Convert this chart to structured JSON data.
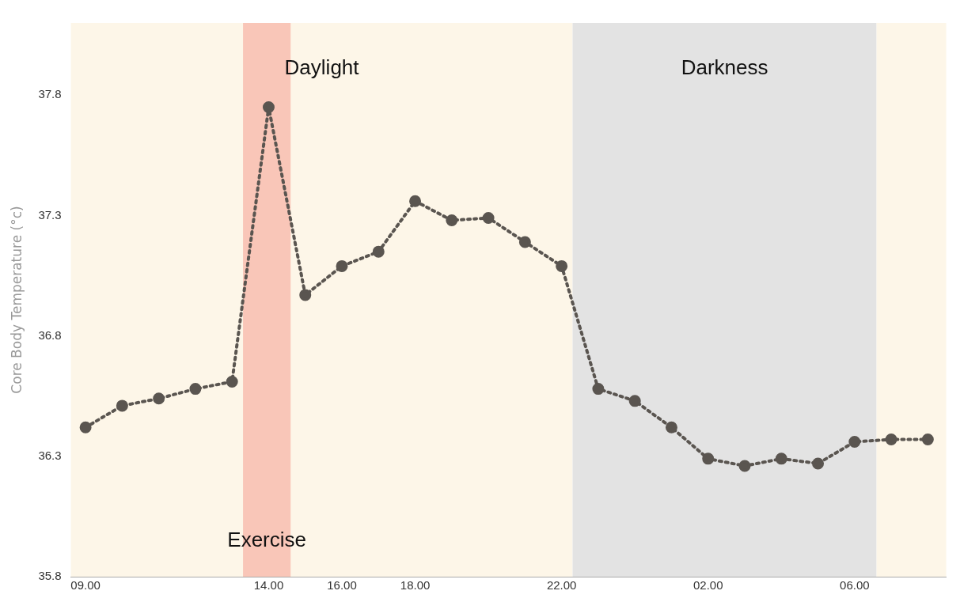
{
  "chart_data": {
    "type": "line",
    "ylabel": "Core Body Temperature (°c)",
    "x": [
      "2000-01-01T09:00",
      "2000-01-01T10:00",
      "2000-01-01T11:00",
      "2000-01-01T12:00",
      "2000-01-01T13:00",
      "2000-01-01T14:00",
      "2000-01-01T15:00",
      "2000-01-01T16:00",
      "2000-01-01T17:00",
      "2000-01-01T18:00",
      "2000-01-01T19:00",
      "2000-01-01T20:00",
      "2000-01-01T21:00",
      "2000-01-01T22:00",
      "2000-01-01T23:00",
      "2000-01-02T00:00",
      "2000-01-02T01:00",
      "2000-01-02T02:00",
      "2000-01-02T03:00",
      "2000-01-02T04:00",
      "2000-01-02T05:00",
      "2000-01-02T06:00",
      "2000-01-02T07:00",
      "2000-01-02T08:00"
    ],
    "series": [
      {
        "color": "#5a5550",
        "values": [
          36.42,
          36.51,
          36.54,
          36.58,
          36.61,
          37.75,
          36.97,
          37.09,
          37.15,
          37.36,
          37.28,
          37.29,
          37.19,
          37.09,
          36.58,
          36.53,
          36.42,
          36.29,
          36.26,
          36.29,
          36.27,
          36.36,
          36.37,
          36.37
        ]
      }
    ],
    "xlim": [
      "2000-01-01T08:36",
      "2000-01-02T08:30"
    ],
    "xticks": [
      {
        "value": "2000-01-01T09:00",
        "label": "09.00"
      },
      {
        "value": "2000-01-01T14:00",
        "label": "14.00"
      },
      {
        "value": "2000-01-01T16:00",
        "label": "16.00"
      },
      {
        "value": "2000-01-01T18:00",
        "label": "18.00"
      },
      {
        "value": "2000-01-01T22:00",
        "label": "22.00"
      },
      {
        "value": "2000-01-02T02:00",
        "label": "02.00"
      },
      {
        "value": "2000-01-02T06:00",
        "label": "06.00"
      }
    ],
    "ylim": [
      35.8,
      38.1
    ],
    "yticks": [
      35.8,
      36.3,
      36.8,
      37.3,
      37.8
    ],
    "bands": [
      {
        "axis": "x",
        "from": "2000-01-01T08:36",
        "to": "2000-01-01T22:18",
        "label": "Daylight",
        "color": "#fdf6e8"
      },
      {
        "axis": "x",
        "from": "2000-01-01T22:18",
        "to": "2000-01-02T06:36",
        "label": "Darkness",
        "color": "#e3e3e3"
      },
      {
        "axis": "x",
        "from": "2000-01-02T06:36",
        "to": "2000-01-02T08:30",
        "color": "#fdf6e8"
      },
      {
        "axis": "x",
        "from": "2000-01-01T13:18",
        "to": "2000-01-01T14:36",
        "label": "Exercise",
        "color": "#f9c6b8"
      }
    ],
    "grid": false,
    "legend": false,
    "marker": "circle",
    "line_style": "dotted"
  }
}
